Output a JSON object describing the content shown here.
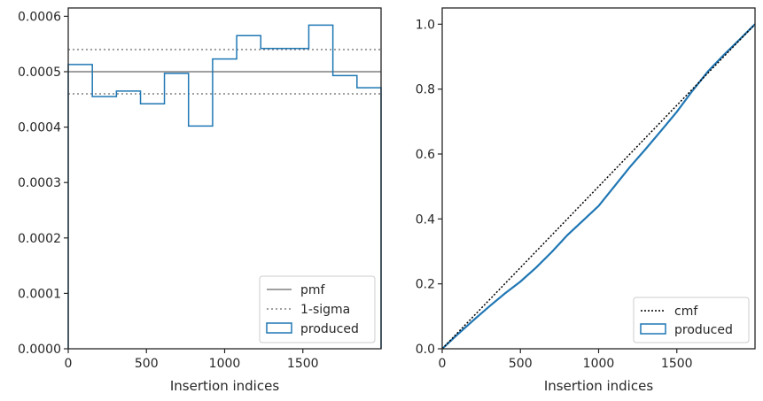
{
  "chart_data": [
    {
      "type": "line",
      "xlabel": "Insertion indices",
      "ylabel": "",
      "xlim": [
        0,
        2000
      ],
      "ylim": [
        0,
        0.000615
      ],
      "x_ticks": [
        0,
        500,
        1000,
        1500
      ],
      "x_tick_labels": [
        "0",
        "500",
        "1000",
        "1500"
      ],
      "y_ticks": [
        0,
        0.0001,
        0.0002,
        0.0003,
        0.0004,
        0.0005,
        0.0006
      ],
      "y_tick_labels": [
        "0.0000",
        "0.0001",
        "0.0002",
        "0.0003",
        "0.0004",
        "0.0005",
        "0.0006"
      ],
      "grid": false,
      "legend_position": "lower right",
      "pmf": {
        "name": "pmf",
        "value": 0.0005,
        "color": "#808080"
      },
      "sigma": {
        "name": "1-sigma",
        "values": [
          0.00046,
          0.00054
        ],
        "color": "#808080"
      },
      "histogram": {
        "name": "produced",
        "color": "#1f77b4",
        "bin_edges": [
          0,
          154,
          308,
          462,
          615,
          769,
          923,
          1077,
          1231,
          1385,
          1538,
          1692,
          1846,
          2000
        ],
        "values": [
          0.000513,
          0.000455,
          0.000465,
          0.000442,
          0.000497,
          0.000402,
          0.000523,
          0.000565,
          0.000542,
          0.000542,
          0.000584,
          0.000493,
          0.000471
        ]
      }
    },
    {
      "type": "line",
      "xlabel": "Insertion indices",
      "ylabel": "",
      "xlim": [
        0,
        2000
      ],
      "ylim": [
        0,
        1.05
      ],
      "x_ticks": [
        0,
        500,
        1000,
        1500
      ],
      "x_tick_labels": [
        "0",
        "500",
        "1000",
        "1500"
      ],
      "y_ticks": [
        0,
        0.2,
        0.4,
        0.6,
        0.8,
        1.0
      ],
      "y_tick_labels": [
        "0.0",
        "0.2",
        "0.4",
        "0.6",
        "0.8",
        "1.0"
      ],
      "grid": false,
      "legend_position": "lower right",
      "cmf": {
        "name": "cmf",
        "x": [
          0,
          2000
        ],
        "y": [
          0,
          1
        ],
        "color": "#000000"
      },
      "produced": {
        "name": "produced",
        "color": "#1f77b4",
        "x": [
          0,
          100,
          200,
          300,
          400,
          500,
          600,
          700,
          800,
          900,
          1000,
          1100,
          1200,
          1300,
          1400,
          1500,
          1600,
          1700,
          1800,
          1900,
          2000
        ],
        "y": [
          0,
          0.045,
          0.088,
          0.13,
          0.17,
          0.207,
          0.25,
          0.298,
          0.35,
          0.395,
          0.44,
          0.5,
          0.56,
          0.615,
          0.672,
          0.73,
          0.795,
          0.855,
          0.905,
          0.952,
          1.0
        ]
      }
    }
  ]
}
